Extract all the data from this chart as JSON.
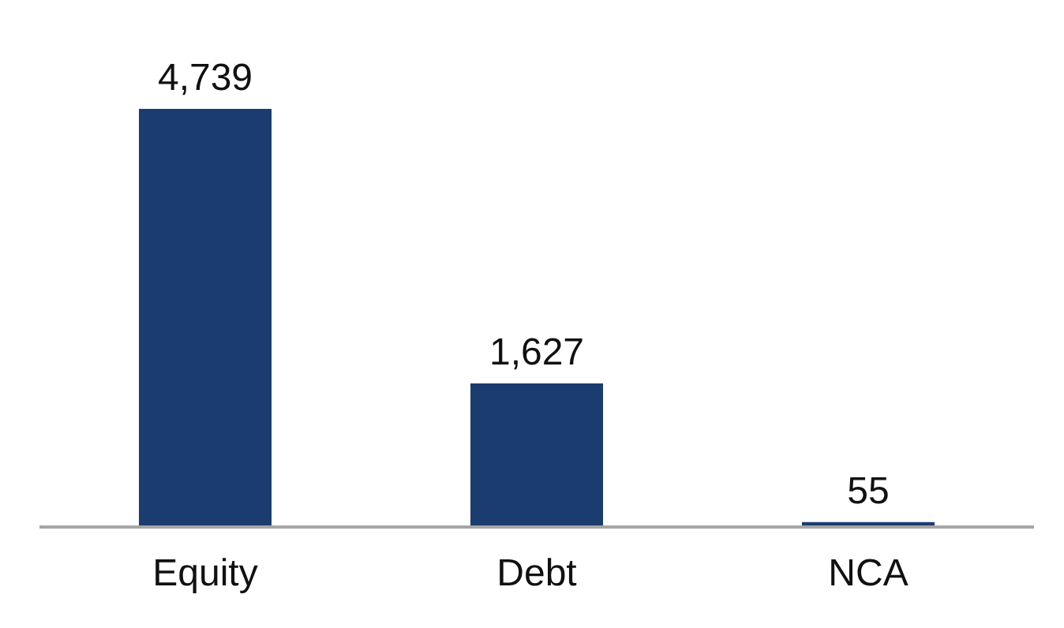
{
  "chart_data": {
    "type": "bar",
    "categories": [
      "Equity",
      "Debt",
      "NCA"
    ],
    "values": [
      4739,
      1627,
      55
    ],
    "color": "#1b3c6f",
    "value_labels": [
      "4,739",
      "1,627",
      "55"
    ]
  }
}
